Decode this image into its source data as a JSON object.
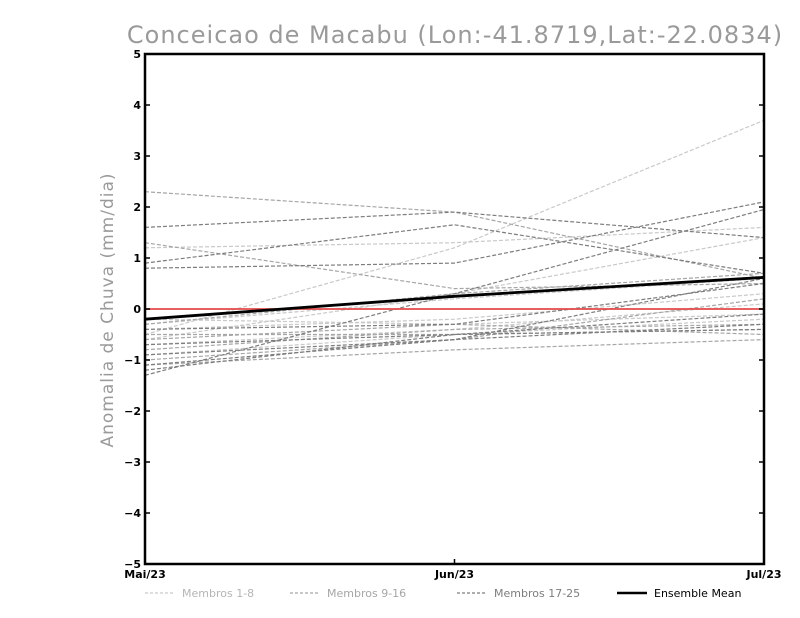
{
  "chart_data": {
    "type": "line",
    "title": "Conceicao de Macabu (Lon:-41.8719,Lat:-22.0834)",
    "xlabel": "",
    "ylabel": "Anomalia de Chuva (mm/dia)",
    "categories": [
      "Mai/23",
      "Jun/23",
      "Jul/23"
    ],
    "ylim": [
      -5,
      5
    ],
    "yticks": [
      -5,
      -4,
      -3,
      -2,
      -1,
      0,
      1,
      2,
      3,
      4,
      5
    ],
    "grid": false,
    "reference_line": {
      "value": 0,
      "color": "#e34a4a"
    },
    "colors": {
      "group_light": "#c9c9c9",
      "group_mid": "#a6a6a6",
      "group_dark": "#7d7d7d",
      "mean": "#000000"
    },
    "legend": [
      {
        "label": "Membros 1-8",
        "group": "light"
      },
      {
        "label": "Membros 9-16",
        "group": "mid"
      },
      {
        "label": "Membros 17-25",
        "group": "dark"
      },
      {
        "label": "Ensemble Mean",
        "group": "mean"
      }
    ],
    "series": [
      {
        "group": "light",
        "values": [
          -0.5,
          1.2,
          3.7
        ]
      },
      {
        "group": "light",
        "values": [
          -0.6,
          0.3,
          1.4
        ]
      },
      {
        "group": "light",
        "values": [
          -0.3,
          0.2,
          0.6
        ]
      },
      {
        "group": "light",
        "values": [
          -0.4,
          -0.2,
          0.3
        ]
      },
      {
        "group": "light",
        "values": [
          -0.7,
          -0.4,
          0.1
        ]
      },
      {
        "group": "light",
        "values": [
          -0.2,
          -0.3,
          -0.1
        ]
      },
      {
        "group": "light",
        "values": [
          -0.9,
          -0.5,
          -0.2
        ]
      },
      {
        "group": "light",
        "values": [
          1.2,
          1.3,
          1.6
        ]
      },
      {
        "group": "mid",
        "values": [
          2.3,
          1.9,
          0.6
        ]
      },
      {
        "group": "mid",
        "values": [
          1.3,
          0.4,
          0.5
        ]
      },
      {
        "group": "mid",
        "values": [
          -0.6,
          -0.3,
          -0.5
        ]
      },
      {
        "group": "mid",
        "values": [
          -1.1,
          -0.8,
          -0.6
        ]
      },
      {
        "group": "mid",
        "values": [
          -0.8,
          -0.4,
          -0.3
        ]
      },
      {
        "group": "mid",
        "values": [
          -0.5,
          -0.5,
          -0.4
        ]
      },
      {
        "group": "mid",
        "values": [
          -1.0,
          -0.6,
          0.2
        ]
      },
      {
        "group": "mid",
        "values": [
          -0.3,
          0.3,
          0.7
        ]
      },
      {
        "group": "dark",
        "values": [
          1.6,
          1.9,
          1.4
        ]
      },
      {
        "group": "dark",
        "values": [
          0.9,
          1.65,
          0.7
        ]
      },
      {
        "group": "dark",
        "values": [
          0.8,
          0.9,
          2.1
        ]
      },
      {
        "group": "dark",
        "values": [
          -1.3,
          0.3,
          1.95
        ]
      },
      {
        "group": "dark",
        "values": [
          -1.2,
          -0.5,
          -0.1
        ]
      },
      {
        "group": "dark",
        "values": [
          -0.9,
          -0.6,
          -0.3
        ]
      },
      {
        "group": "dark",
        "values": [
          -0.7,
          -0.5,
          -0.4
        ]
      },
      {
        "group": "dark",
        "values": [
          -0.4,
          -0.3,
          0.5
        ]
      },
      {
        "group": "dark",
        "values": [
          -1.1,
          -0.6,
          0.6
        ]
      }
    ],
    "mean": {
      "name": "Ensemble Mean",
      "values": [
        -0.2,
        0.25,
        0.62
      ]
    }
  }
}
